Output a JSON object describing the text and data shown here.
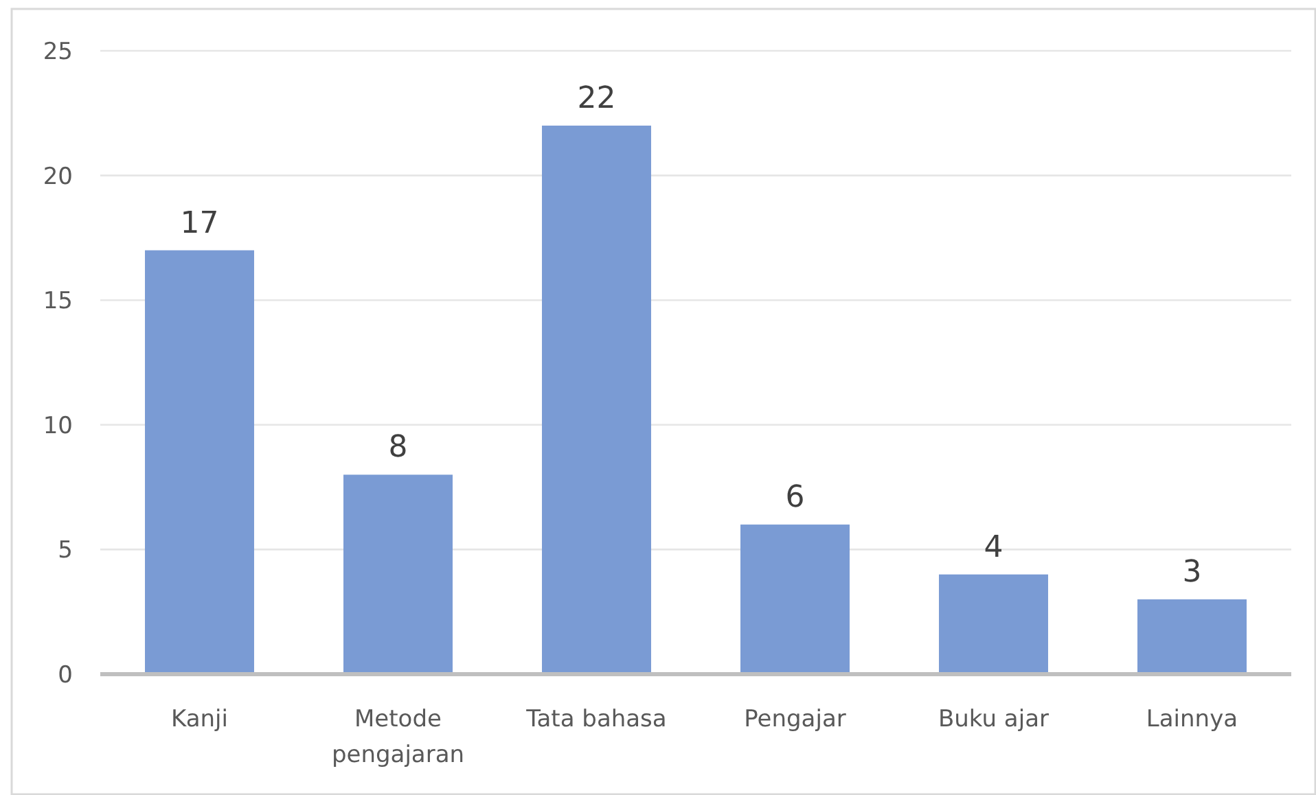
{
  "chart_data": {
    "type": "bar",
    "categories": [
      "Kanji",
      "Metode pengajaran",
      "Tata bahasa",
      "Pengajar",
      "Buku ajar",
      "Lainnya"
    ],
    "values": [
      17,
      8,
      22,
      6,
      4,
      3
    ],
    "color": "#7a9bd4",
    "ylim": [
      0,
      25
    ],
    "yticks": [
      0,
      5,
      10,
      15,
      20,
      25
    ],
    "grid": "y",
    "data_labels": true
  }
}
